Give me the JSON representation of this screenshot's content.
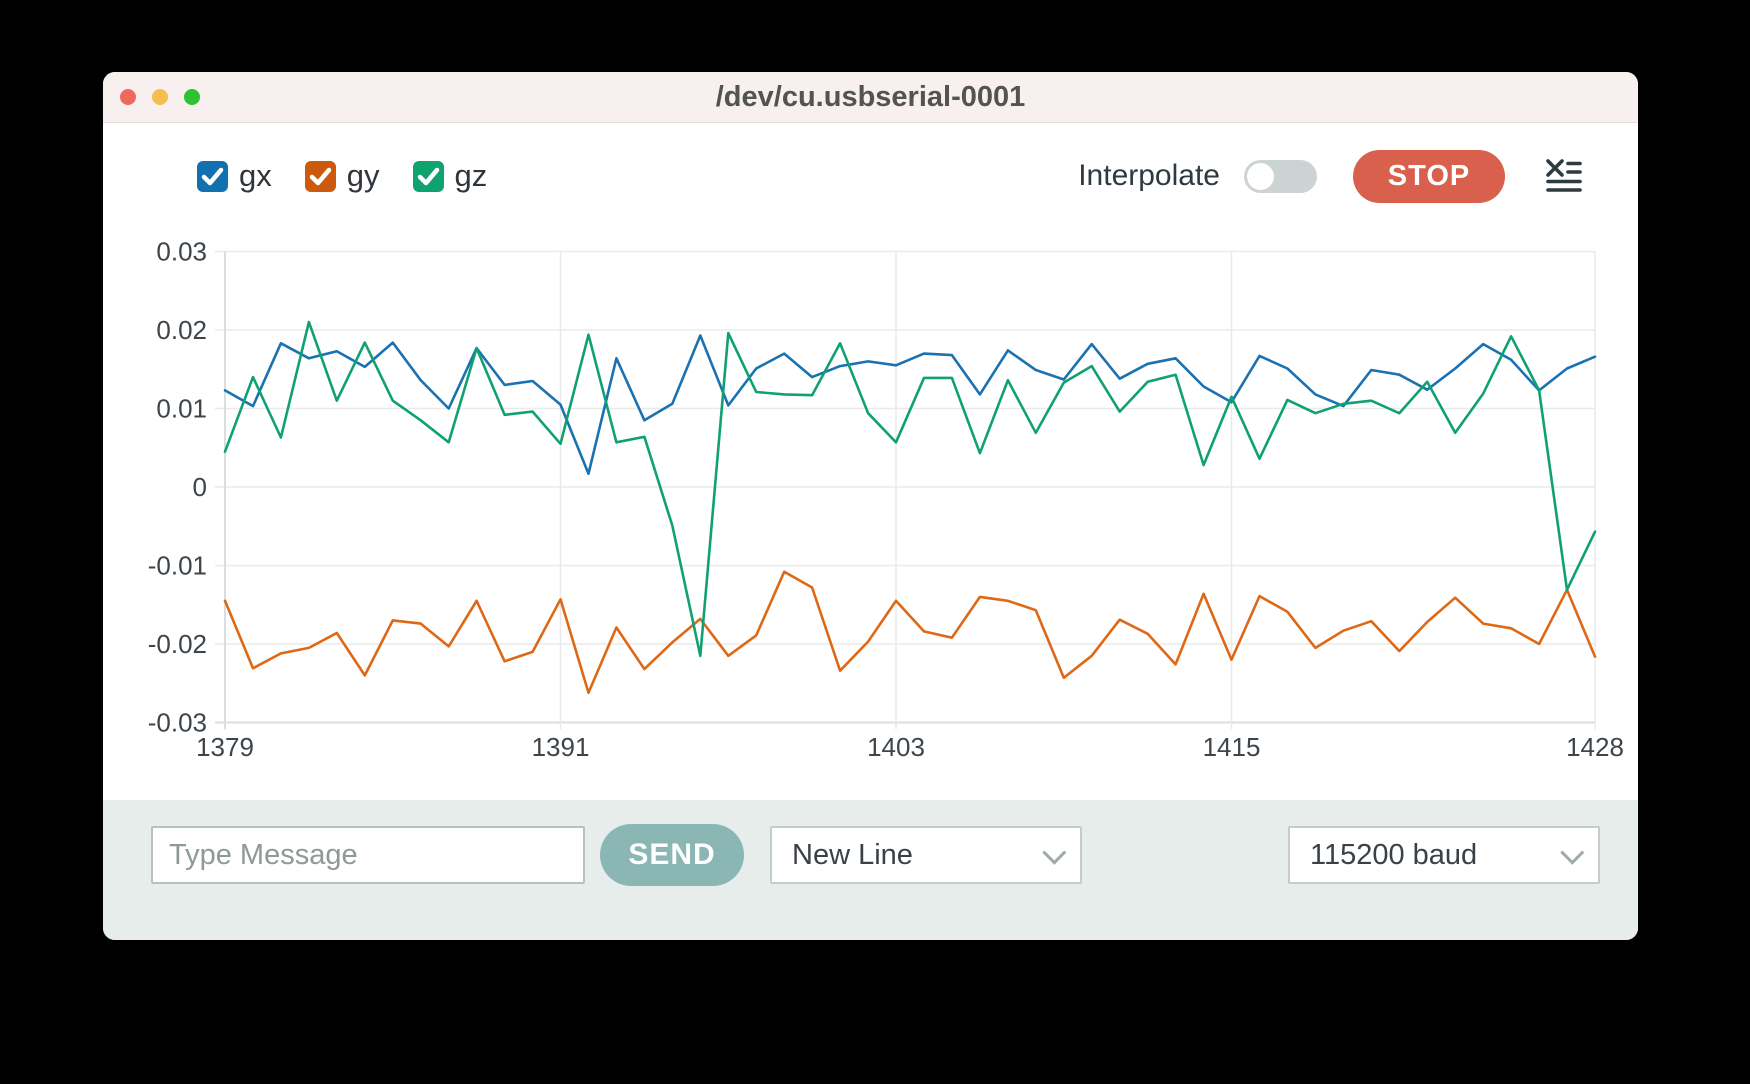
{
  "window": {
    "title": "/dev/cu.usbserial-0001"
  },
  "titlebar_lights": {
    "close_color": "#ee6a5e",
    "minimize_color": "#f6be4f",
    "zoom_color": "#2ec132"
  },
  "legend": {
    "items": [
      {
        "label": "gx",
        "color": "#1170b0",
        "checked": true
      },
      {
        "label": "gy",
        "color": "#cb5a0c",
        "checked": true
      },
      {
        "label": "gz",
        "color": "#0ea36f",
        "checked": true
      }
    ]
  },
  "controls": {
    "interpolate_label": "Interpolate",
    "interpolate_on": false,
    "stop_label": "STOP",
    "stop_color": "#d8604d"
  },
  "chart_data": {
    "type": "line",
    "title": "",
    "xlabel": "",
    "ylabel": "",
    "xlim": [
      1379,
      1428
    ],
    "ylim": [
      -0.03,
      0.03
    ],
    "xticks": [
      1379,
      1391,
      1403,
      1415,
      1428
    ],
    "yticks": [
      0.03,
      0.02,
      0.01,
      0,
      -0.01,
      -0.02,
      -0.03
    ],
    "grid": true,
    "legend_position": "top-left",
    "x": [
      1379,
      1380,
      1381,
      1382,
      1383,
      1384,
      1385,
      1386,
      1387,
      1388,
      1389,
      1390,
      1391,
      1392,
      1393,
      1394,
      1395,
      1396,
      1397,
      1398,
      1399,
      1400,
      1401,
      1402,
      1403,
      1404,
      1405,
      1406,
      1407,
      1408,
      1409,
      1410,
      1411,
      1412,
      1413,
      1414,
      1415,
      1416,
      1417,
      1418,
      1419,
      1420,
      1421,
      1422,
      1423,
      1424,
      1425,
      1426,
      1427,
      1428
    ],
    "series": [
      {
        "name": "gx",
        "color": "#1a72b2",
        "values": [
          0.0123,
          0.0103,
          0.0183,
          0.0164,
          0.0173,
          0.0153,
          0.0184,
          0.0136,
          0.01,
          0.0177,
          0.013,
          0.0135,
          0.0105,
          0.0017,
          0.0164,
          0.0085,
          0.0106,
          0.0193,
          0.0104,
          0.0151,
          0.017,
          0.014,
          0.0154,
          0.016,
          0.0155,
          0.017,
          0.0168,
          0.0118,
          0.0174,
          0.0149,
          0.0137,
          0.0182,
          0.0138,
          0.0157,
          0.0164,
          0.0128,
          0.0108,
          0.0167,
          0.0151,
          0.0118,
          0.0103,
          0.0149,
          0.0143,
          0.0124,
          0.0151,
          0.0182,
          0.0162,
          0.0123,
          0.0151,
          0.0166
        ]
      },
      {
        "name": "gy",
        "color": "#df6817",
        "values": [
          -0.0145,
          -0.0231,
          -0.0212,
          -0.0205,
          -0.0186,
          -0.024,
          -0.017,
          -0.0174,
          -0.0203,
          -0.0145,
          -0.0222,
          -0.021,
          -0.0143,
          -0.0262,
          -0.0179,
          -0.0232,
          -0.0198,
          -0.0168,
          -0.0215,
          -0.0189,
          -0.0108,
          -0.0128,
          -0.0234,
          -0.0197,
          -0.0145,
          -0.0184,
          -0.0192,
          -0.014,
          -0.0145,
          -0.0157,
          -0.0243,
          -0.0215,
          -0.0169,
          -0.0187,
          -0.0226,
          -0.0136,
          -0.022,
          -0.0139,
          -0.0159,
          -0.0205,
          -0.0183,
          -0.0171,
          -0.0209,
          -0.0172,
          -0.0141,
          -0.0174,
          -0.018,
          -0.02,
          -0.0131,
          -0.0216
        ]
      },
      {
        "name": "gz",
        "color": "#10a173",
        "values": [
          0.0045,
          0.014,
          0.0063,
          0.021,
          0.011,
          0.0184,
          0.011,
          0.0085,
          0.0057,
          0.0177,
          0.0092,
          0.0096,
          0.0055,
          0.0194,
          0.0057,
          0.0064,
          -0.0049,
          -0.0215,
          0.0196,
          0.0121,
          0.0118,
          0.0117,
          0.0183,
          0.0094,
          0.0057,
          0.0139,
          0.0139,
          0.0043,
          0.0136,
          0.0069,
          0.0133,
          0.0154,
          0.0096,
          0.0134,
          0.0143,
          0.0028,
          0.0115,
          0.0036,
          0.0111,
          0.0094,
          0.0106,
          0.011,
          0.0094,
          0.0134,
          0.0069,
          0.0119,
          0.0192,
          0.0123,
          -0.0131,
          -0.0057
        ]
      }
    ]
  },
  "bottom_bar": {
    "message_placeholder": "Type Message",
    "send_label": "SEND",
    "send_color": "#8ab6b3",
    "line_ending_selected": "New Line",
    "baud_selected": "115200 baud"
  }
}
